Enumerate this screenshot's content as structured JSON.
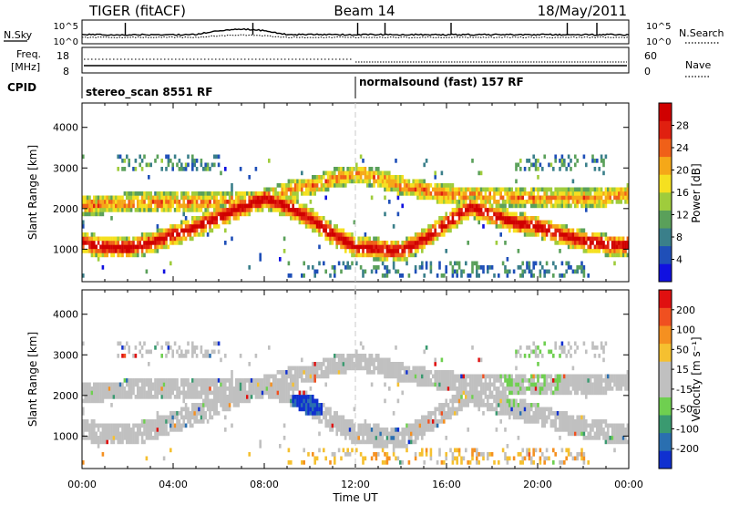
{
  "header": {
    "radar": "TIGER (fitACF)",
    "beam": "Beam 14",
    "date": "18/May/2011"
  },
  "noise_panel": {
    "left_label": "N.Sky",
    "right_label": "N.Search",
    "left_ticks": [
      "10^5",
      "10^0"
    ],
    "right_ticks": [
      "10^5",
      "10^0"
    ]
  },
  "freq_panel": {
    "left_label_1": "Freq.",
    "left_label_2": "[MHz]",
    "right_label": "Nave",
    "left_ticks": [
      "18",
      "8"
    ],
    "right_ticks": [
      "60",
      "0"
    ]
  },
  "cpid": {
    "label": "CPID",
    "segments": [
      {
        "start_hour": 0,
        "text": "stereo_scan 8551 RF"
      },
      {
        "start_hour": 12,
        "text": "normalsound (fast) 157 RF"
      }
    ]
  },
  "chart_data": [
    {
      "type": "heatmap",
      "name": "power",
      "ylabel": "Slant Range [km]",
      "xlabel": "Time UT",
      "xlim_hours": [
        0,
        24
      ],
      "ylim_km": [
        200,
        4600
      ],
      "yticks": [
        1000,
        2000,
        3000,
        4000
      ],
      "xtick_labels": [
        "00:00",
        "04:00",
        "08:00",
        "12:00",
        "16:00",
        "20:00",
        "00:00"
      ],
      "xtick_hours": [
        0,
        4,
        8,
        12,
        16,
        20,
        24
      ],
      "colorbar": {
        "label": "Power [dB]",
        "tick_labels": [
          "28",
          "24",
          "20",
          "16",
          "12",
          "8",
          "4"
        ],
        "colors": [
          "#1010e0",
          "#1f4fb8",
          "#3a7f8a",
          "#5aa05a",
          "#9fcc3c",
          "#f5e020",
          "#f5a818",
          "#f06018",
          "#e02010",
          "#d00000"
        ]
      },
      "features": [
        {
          "desc": "strong scatter band",
          "points": [
            [
              0.0,
              1100
            ],
            [
              1.0,
              1000
            ],
            [
              2.0,
              980
            ],
            [
              3.0,
              1100
            ],
            [
              4.0,
              1300
            ],
            [
              5.0,
              1500
            ],
            [
              6.0,
              1750
            ],
            [
              7.0,
              2000
            ],
            [
              8.0,
              2200
            ],
            [
              9.0,
              2000
            ],
            [
              10.0,
              1700
            ],
            [
              11.0,
              1300
            ],
            [
              12.0,
              1000
            ],
            [
              13.0,
              950
            ],
            [
              14.0,
              900
            ],
            [
              15.0,
              1200
            ],
            [
              16.0,
              1600
            ],
            [
              17.0,
              2000
            ],
            [
              18.0,
              1800
            ],
            [
              19.0,
              1600
            ],
            [
              20.0,
              1500
            ],
            [
              21.0,
              1300
            ],
            [
              22.0,
              1150
            ],
            [
              23.0,
              1050
            ],
            [
              24.0,
              1050
            ]
          ]
        },
        {
          "desc": "upper scatter band",
          "points": [
            [
              0.0,
              2000
            ],
            [
              2.0,
              2100
            ],
            [
              4.0,
              2100
            ],
            [
              6.0,
              2100
            ],
            [
              8.0,
              2200
            ],
            [
              9.0,
              2400
            ],
            [
              10.0,
              2500
            ],
            [
              11.0,
              2700
            ],
            [
              12.0,
              2800
            ],
            [
              13.0,
              2700
            ],
            [
              14.0,
              2500
            ],
            [
              15.0,
              2400
            ],
            [
              16.0,
              2300
            ],
            [
              18.0,
              2250
            ],
            [
              20.0,
              2200
            ],
            [
              22.0,
              2200
            ],
            [
              24.0,
              2300
            ]
          ]
        }
      ]
    },
    {
      "type": "heatmap",
      "name": "velocity",
      "ylabel": "Slant Range [km]",
      "xlabel": "Time UT",
      "xlim_hours": [
        0,
        24
      ],
      "ylim_km": [
        200,
        4600
      ],
      "yticks": [
        1000,
        2000,
        3000,
        4000
      ],
      "colorbar": {
        "label": "Velocity [m s⁻¹]",
        "tick_labels": [
          "200",
          "100",
          "50",
          "15",
          "-15",
          "-50",
          "-100",
          "-200"
        ],
        "colors": [
          "#1030d0",
          "#2a6fb0",
          "#3a9a70",
          "#6fcf50",
          "#c0c0c0",
          "#c0c0c0",
          "#f5c030",
          "#f59020",
          "#f05020",
          "#e01010"
        ]
      }
    }
  ],
  "time_axis_label": "Time UT",
  "time_tick_labels": [
    "00:00",
    "04:00",
    "08:00",
    "12:00",
    "16:00",
    "20:00",
    "00:00"
  ]
}
